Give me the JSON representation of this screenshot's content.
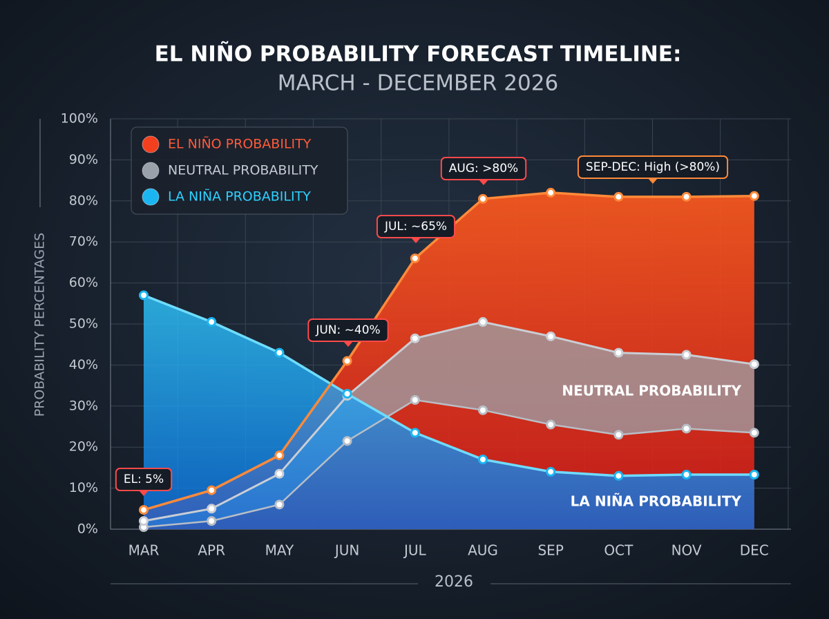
{
  "chart_data": {
    "type": "area",
    "title": "EL NIÑO PROBABILITY FORECAST TIMELINE:",
    "subtitle": "MARCH - DECEMBER 2026",
    "y_label": "PROBABILITY PERCENTAGES",
    "x_label": "2026",
    "categories": [
      "MAR",
      "APR",
      "MAY",
      "JUN",
      "JUL",
      "AUG",
      "SEP",
      "OCT",
      "NOV",
      "DEC"
    ],
    "series": [
      {
        "name": "EL NIÑO PROBABILITY",
        "color": "#f2401f",
        "values": [
          4.7,
          9.5,
          18,
          41,
          66,
          80.5,
          82,
          81,
          81,
          81.2
        ]
      },
      {
        "name": "NEUTRAL PROBABILITY",
        "color": "#9ba1aa",
        "values": [
          2,
          5,
          13.5,
          32.5,
          46.5,
          50.5,
          47,
          43,
          42.5,
          40.2
        ],
        "lower": [
          0.5,
          2,
          6,
          21.5,
          31.5,
          29,
          25.5,
          23,
          24.5,
          23.5
        ]
      },
      {
        "name": "LA NIÑA PROBABILITY",
        "color": "#1bb6f2",
        "values": [
          57,
          50.5,
          43,
          33,
          23.5,
          17,
          14,
          13,
          13.3,
          13.3
        ]
      }
    ],
    "annotations": [
      "EL: 5%",
      "JUN: ~40%",
      "JUL: ~65%",
      "AUG: >80%",
      "SEP-DEC: High (>80%)",
      "NEUTRAL PROBABILITY",
      "LA NIÑA PROBABILITY"
    ],
    "ylim": [
      0,
      100
    ],
    "yticks": [
      {
        "value": 0,
        "label": "0%"
      },
      {
        "value": 10,
        "label": "10%"
      },
      {
        "value": 20,
        "label": "20%"
      },
      {
        "value": 30,
        "label": "30%"
      },
      {
        "value": 40,
        "label": "40%"
      },
      {
        "value": 50,
        "label": "50%"
      },
      {
        "value": 60,
        "label": "60%"
      },
      {
        "value": 70,
        "label": "70%"
      },
      {
        "value": 80,
        "label": "80%"
      },
      {
        "value": 90,
        "label": "90%"
      },
      {
        "value": 100,
        "label": "100%"
      }
    ],
    "grid": true,
    "legend": "upper left"
  }
}
